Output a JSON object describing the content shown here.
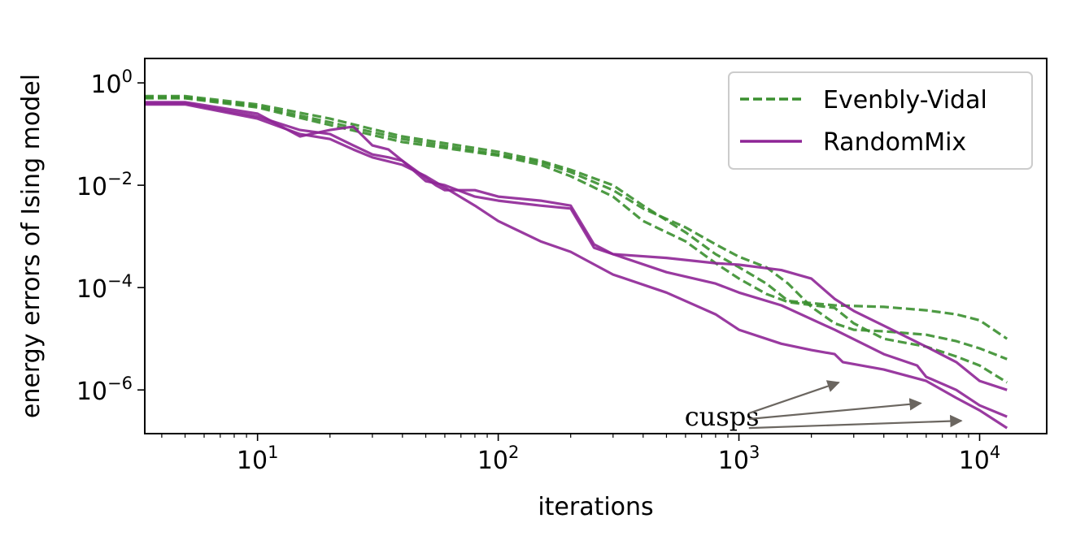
{
  "chart_data": {
    "type": "line",
    "title": "",
    "xlabel": "iterations",
    "ylabel": "energy errors of Ising model",
    "xscale": "log",
    "yscale": "log",
    "xlim": [
      3.4,
      19000
    ],
    "ylim": [
      1.4e-07,
      3.0
    ],
    "grid": false,
    "legend_position": "top-right",
    "colors": {
      "Evenbly-Vidal": "#3a8f2f",
      "RandomMix": "#8e2596",
      "annotation": "#6b6660"
    },
    "xticks": [
      {
        "value": 10,
        "base": "10",
        "exp": "1"
      },
      {
        "value": 100,
        "base": "10",
        "exp": "2"
      },
      {
        "value": 1000,
        "base": "10",
        "exp": "3"
      },
      {
        "value": 10000,
        "base": "10",
        "exp": "4"
      }
    ],
    "yticks": [
      {
        "value": 1,
        "base": "10",
        "exp": "0"
      },
      {
        "value": 0.01,
        "base": "10",
        "exp": "−2"
      },
      {
        "value": 0.0001,
        "base": "10",
        "exp": "−4"
      },
      {
        "value": 1e-06,
        "base": "10",
        "exp": "−6"
      }
    ],
    "legend": [
      {
        "label": "Evenbly-Vidal",
        "style": "dashed",
        "color": "#3a8f2f"
      },
      {
        "label": "RandomMix",
        "style": "solid",
        "color": "#8e2596"
      }
    ],
    "series": [
      {
        "group": "Evenbly-Vidal",
        "style": "dashed",
        "color": "#3a8f2f",
        "points": [
          [
            3.4,
            0.55
          ],
          [
            5,
            0.55
          ],
          [
            10,
            0.38
          ],
          [
            20,
            0.2
          ],
          [
            40,
            0.09
          ],
          [
            100,
            0.045
          ],
          [
            150,
            0.03
          ],
          [
            200,
            0.02
          ],
          [
            300,
            0.01
          ],
          [
            400,
            0.004
          ],
          [
            600,
            0.0012
          ],
          [
            800,
            0.00045
          ],
          [
            1000,
            0.00025
          ],
          [
            1300,
            0.00012
          ],
          [
            1600,
            5.5e-05
          ],
          [
            2500,
            4.5e-05
          ],
          [
            4000,
            4.2e-05
          ],
          [
            6000,
            3.6e-05
          ],
          [
            8000,
            3e-05
          ],
          [
            10000,
            2.3e-05
          ],
          [
            13000,
            1e-05
          ]
        ]
      },
      {
        "group": "Evenbly-Vidal",
        "style": "dashed",
        "color": "#3a8f2f",
        "points": [
          [
            3.4,
            0.52
          ],
          [
            5,
            0.52
          ],
          [
            10,
            0.35
          ],
          [
            20,
            0.17
          ],
          [
            40,
            0.08
          ],
          [
            100,
            0.04
          ],
          [
            150,
            0.028
          ],
          [
            200,
            0.018
          ],
          [
            300,
            0.008
          ],
          [
            400,
            0.0035
          ],
          [
            600,
            0.0015
          ],
          [
            800,
            0.0007
          ],
          [
            1000,
            0.0004
          ],
          [
            1300,
            0.00025
          ],
          [
            1600,
            0.00012
          ],
          [
            2000,
            4.2e-05
          ],
          [
            2500,
            2e-05
          ],
          [
            3000,
            1.5e-05
          ],
          [
            4000,
            1.4e-05
          ],
          [
            6000,
            1.2e-05
          ],
          [
            8000,
            9e-06
          ],
          [
            10000,
            6.5e-06
          ],
          [
            13000,
            4e-06
          ]
        ]
      },
      {
        "group": "Evenbly-Vidal",
        "style": "dashed",
        "color": "#3a8f2f",
        "points": [
          [
            3.4,
            0.5
          ],
          [
            5,
            0.5
          ],
          [
            10,
            0.33
          ],
          [
            20,
            0.15
          ],
          [
            40,
            0.07
          ],
          [
            100,
            0.038
          ],
          [
            150,
            0.025
          ],
          [
            200,
            0.015
          ],
          [
            300,
            0.006
          ],
          [
            400,
            0.002
          ],
          [
            600,
            0.0008
          ],
          [
            800,
            0.0003
          ],
          [
            1000,
            0.00015
          ],
          [
            1300,
            7.5e-05
          ],
          [
            1600,
            5.2e-05
          ],
          [
            2500,
            4e-05
          ],
          [
            3000,
            2e-05
          ],
          [
            4000,
            1e-05
          ],
          [
            6000,
            7e-06
          ],
          [
            8000,
            4.5e-06
          ],
          [
            10000,
            3e-06
          ],
          [
            13000,
            1.4e-06
          ]
        ]
      },
      {
        "group": "RandomMix",
        "style": "solid",
        "color": "#8e2596",
        "points": [
          [
            3.4,
            0.42
          ],
          [
            5,
            0.42
          ],
          [
            10,
            0.25
          ],
          [
            15,
            0.09
          ],
          [
            20,
            0.12
          ],
          [
            25,
            0.14
          ],
          [
            30,
            0.06
          ],
          [
            35,
            0.05
          ],
          [
            40,
            0.03
          ],
          [
            50,
            0.012
          ],
          [
            60,
            0.01
          ],
          [
            80,
            0.006
          ],
          [
            100,
            0.005
          ],
          [
            150,
            0.004
          ],
          [
            200,
            0.0035
          ],
          [
            250,
            0.0006
          ],
          [
            300,
            0.00045
          ],
          [
            500,
            0.00038
          ],
          [
            800,
            0.0003
          ],
          [
            1000,
            0.00028
          ],
          [
            1500,
            0.00022
          ],
          [
            2000,
            0.00015
          ],
          [
            2500,
            6e-05
          ],
          [
            3000,
            3.5e-05
          ],
          [
            4000,
            1.8e-05
          ],
          [
            6000,
            7e-06
          ],
          [
            8000,
            3.5e-06
          ],
          [
            10000,
            1.5e-06
          ],
          [
            13000,
            1e-06
          ]
        ]
      },
      {
        "group": "RandomMix",
        "style": "solid",
        "color": "#8e2596",
        "points": [
          [
            3.4,
            0.4
          ],
          [
            5,
            0.4
          ],
          [
            10,
            0.22
          ],
          [
            15,
            0.12
          ],
          [
            20,
            0.1
          ],
          [
            25,
            0.06
          ],
          [
            30,
            0.04
          ],
          [
            35,
            0.035
          ],
          [
            40,
            0.03
          ],
          [
            45,
            0.02
          ],
          [
            55,
            0.01
          ],
          [
            60,
            0.008
          ],
          [
            80,
            0.008
          ],
          [
            100,
            0.006
          ],
          [
            150,
            0.005
          ],
          [
            200,
            0.004
          ],
          [
            250,
            0.0007
          ],
          [
            300,
            0.00045
          ],
          [
            500,
            0.0002
          ],
          [
            800,
            0.00012
          ],
          [
            1000,
            8e-05
          ],
          [
            1500,
            4.5e-05
          ],
          [
            2500,
            1.5e-05
          ],
          [
            4000,
            5e-06
          ],
          [
            5500,
            3e-06
          ],
          [
            6000,
            1.8e-06
          ],
          [
            8000,
            1e-06
          ],
          [
            10000,
            5e-07
          ],
          [
            13000,
            3e-07
          ]
        ]
      },
      {
        "group": "RandomMix",
        "style": "solid",
        "color": "#8e2596",
        "points": [
          [
            3.4,
            0.38
          ],
          [
            5,
            0.38
          ],
          [
            10,
            0.2
          ],
          [
            15,
            0.1
          ],
          [
            20,
            0.08
          ],
          [
            25,
            0.05
          ],
          [
            30,
            0.035
          ],
          [
            40,
            0.025
          ],
          [
            50,
            0.015
          ],
          [
            60,
            0.009
          ],
          [
            80,
            0.004
          ],
          [
            100,
            0.002
          ],
          [
            150,
            0.0008
          ],
          [
            200,
            0.0005
          ],
          [
            300,
            0.00018
          ],
          [
            500,
            8e-05
          ],
          [
            800,
            3e-05
          ],
          [
            1000,
            1.5e-05
          ],
          [
            1500,
            8e-06
          ],
          [
            2000,
            6e-06
          ],
          [
            2500,
            5e-06
          ],
          [
            2700,
            3.5e-06
          ],
          [
            4000,
            2.5e-06
          ],
          [
            6000,
            1.5e-06
          ],
          [
            8000,
            7e-07
          ],
          [
            10000,
            4e-07
          ],
          [
            13000,
            1.8e-07
          ]
        ]
      }
    ],
    "annotation": {
      "text": "cusps",
      "text_at": [
        850,
        3e-07
      ],
      "arrows": [
        {
          "from": [
            1100,
            3.5e-07
          ],
          "to": [
            2600,
            1.4e-06
          ]
        },
        {
          "from": [
            1100,
            2.7e-07
          ],
          "to": [
            5700,
            5.5e-07
          ]
        },
        {
          "from": [
            1100,
            1.8e-07
          ],
          "to": [
            8400,
            2.5e-07
          ]
        }
      ]
    }
  }
}
